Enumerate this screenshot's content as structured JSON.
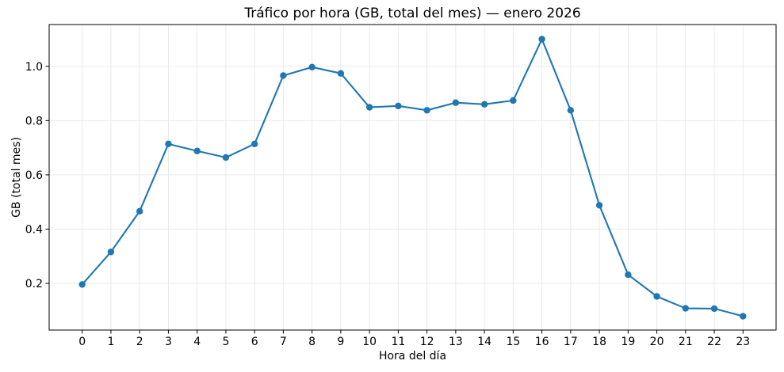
{
  "chart_data": {
    "type": "line",
    "title": "Tráfico por hora (GB, total del mes) — enero 2026",
    "xlabel": "Hora del día",
    "ylabel": "GB (total mes)",
    "x": [
      0,
      1,
      2,
      3,
      4,
      5,
      6,
      7,
      8,
      9,
      10,
      11,
      12,
      13,
      14,
      15,
      16,
      17,
      18,
      19,
      20,
      21,
      22,
      23
    ],
    "y": [
      0.196,
      0.316,
      0.466,
      0.714,
      0.688,
      0.664,
      0.714,
      0.966,
      0.997,
      0.974,
      0.849,
      0.854,
      0.838,
      0.866,
      0.86,
      0.874,
      1.1,
      0.838,
      0.488,
      0.232,
      0.152,
      0.108,
      0.107,
      0.079
    ],
    "x_ticks": [
      0,
      1,
      2,
      3,
      4,
      5,
      6,
      7,
      8,
      9,
      10,
      11,
      12,
      13,
      14,
      15,
      16,
      17,
      18,
      19,
      20,
      21,
      22,
      23
    ],
    "y_ticks": [
      0.2,
      0.4,
      0.6,
      0.8,
      1.0
    ],
    "xlim": [
      -1.15,
      24.15
    ],
    "ylim": [
      0.028,
      1.154
    ],
    "grid": true,
    "legend_position": "none",
    "line_color": "#1f77b4",
    "grid_color": "#e7e7e7",
    "spine_color": "#000000",
    "marker": "circle"
  }
}
